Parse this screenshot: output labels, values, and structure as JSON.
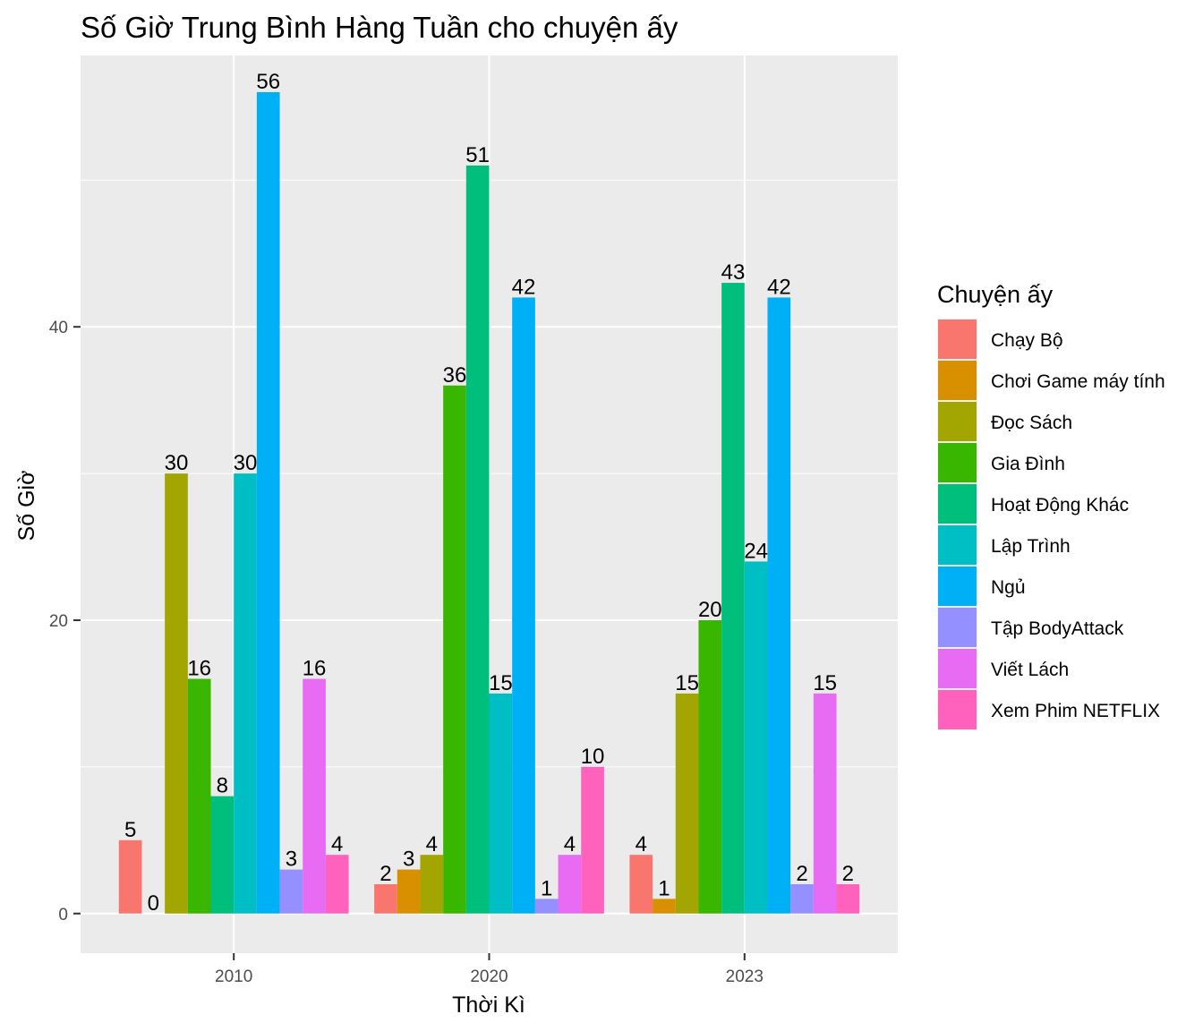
{
  "chart_data": {
    "type": "bar",
    "title": "Số Giờ Trung Bình Hàng Tuần cho chuyện ấy",
    "xlabel": "Thời Kì",
    "ylabel": "Số Giờ",
    "categories": [
      "2010",
      "2020",
      "2023"
    ],
    "y_ticks": [
      "0",
      "20",
      "40"
    ],
    "ylim": [
      -2.7,
      58.5
    ],
    "grid": true,
    "legend_title": "Chuyện ấy",
    "legend_position": "right",
    "series": [
      {
        "name": "Chạy Bộ",
        "color": "#F8766D",
        "values": [
          5,
          2,
          4
        ]
      },
      {
        "name": "Chơi Game máy tính",
        "color": "#D89000",
        "values": [
          0,
          3,
          1
        ]
      },
      {
        "name": "Đọc Sách",
        "color": "#A3A500",
        "values": [
          30,
          4,
          15
        ]
      },
      {
        "name": "Gia Đình",
        "color": "#39B600",
        "values": [
          16,
          36,
          20
        ]
      },
      {
        "name": "Hoạt Động Khác",
        "color": "#00BF7D",
        "values": [
          8,
          51,
          43
        ]
      },
      {
        "name": "Lập Trình",
        "color": "#00BFC4",
        "values": [
          30,
          15,
          24
        ]
      },
      {
        "name": "Ngủ",
        "color": "#00B0F6",
        "values": [
          56,
          42,
          42
        ]
      },
      {
        "name": "Tập BodyAttack",
        "color": "#9590FF",
        "values": [
          3,
          1,
          2
        ]
      },
      {
        "name": "Viết Lách",
        "color": "#E76BF3",
        "values": [
          16,
          4,
          15
        ]
      },
      {
        "name": "Xem Phim NETFLIX",
        "color": "#FF62BC",
        "values": [
          4,
          10,
          2
        ]
      }
    ]
  }
}
